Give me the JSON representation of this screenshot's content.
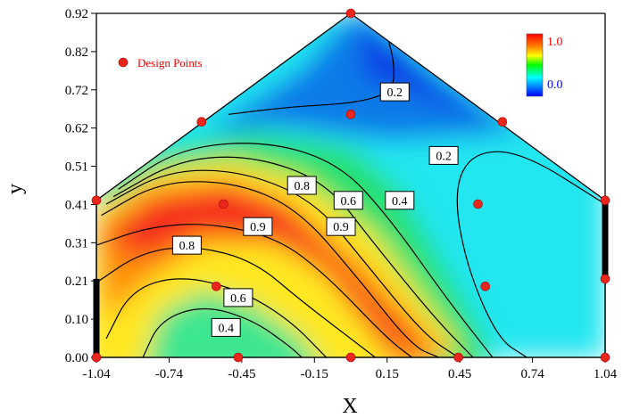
{
  "chart_data": {
    "type": "contour",
    "xlabel": "X",
    "ylabel": "y",
    "xlim": [
      -1.04,
      1.04
    ],
    "ylim": [
      0.0,
      0.92
    ],
    "x_ticks": [
      "-1.04",
      "-0.74",
      "-0.45",
      "-0.15",
      "0.15",
      "0.45",
      "0.74",
      "1.04"
    ],
    "y_ticks": [
      "0.00",
      "0.10",
      "0.21",
      "0.31",
      "0.41",
      "0.51",
      "0.62",
      "0.72",
      "0.82",
      "0.92"
    ],
    "domain_polygon": [
      [
        -1.04,
        0.0
      ],
      [
        1.04,
        0.0
      ],
      [
        1.04,
        0.42
      ],
      [
        0.0,
        0.92
      ],
      [
        -1.04,
        0.42
      ]
    ],
    "colorbar": {
      "max_label": "1.0",
      "min_label": "0.0",
      "max_color": "#ff0000",
      "mid_color": "#00ff00",
      "min_color": "#0000ff"
    },
    "legend": {
      "label": "Design Points",
      "position": "top-left",
      "marker_color": "#e8261e"
    },
    "design_points": [
      [
        0.0,
        0.92
      ],
      [
        -0.61,
        0.63
      ],
      [
        0.0,
        0.65
      ],
      [
        0.62,
        0.63
      ],
      [
        -1.04,
        0.42
      ],
      [
        -0.52,
        0.41
      ],
      [
        0.0,
        0.36
      ],
      [
        0.52,
        0.41
      ],
      [
        1.04,
        0.42
      ],
      [
        -0.55,
        0.19
      ],
      [
        0.55,
        0.19
      ],
      [
        1.04,
        0.21
      ],
      [
        -1.04,
        0.0
      ],
      [
        -0.46,
        0.0
      ],
      [
        0.0,
        0.0
      ],
      [
        0.44,
        0.0
      ],
      [
        1.04,
        0.0
      ]
    ],
    "contour_labels": [
      {
        "text": "0.2",
        "x": 0.18,
        "y": 0.71
      },
      {
        "text": "0.2",
        "x": 0.38,
        "y": 0.54
      },
      {
        "text": "0.8",
        "x": -0.2,
        "y": 0.46
      },
      {
        "text": "0.6",
        "x": -0.01,
        "y": 0.42
      },
      {
        "text": "0.4",
        "x": 0.2,
        "y": 0.42
      },
      {
        "text": "0.9",
        "x": -0.38,
        "y": 0.35
      },
      {
        "text": "0.9",
        "x": -0.04,
        "y": 0.35
      },
      {
        "text": "0.8",
        "x": -0.67,
        "y": 0.3
      },
      {
        "text": "0.6",
        "x": -0.46,
        "y": 0.16
      },
      {
        "text": "0.4",
        "x": -0.51,
        "y": 0.08
      }
    ],
    "thick_edge_segments": [
      {
        "x": -1.04,
        "y0": 0.0,
        "y1": 0.21
      },
      {
        "x": 1.04,
        "y0": 0.21,
        "y1": 0.42
      }
    ],
    "grid": false
  }
}
